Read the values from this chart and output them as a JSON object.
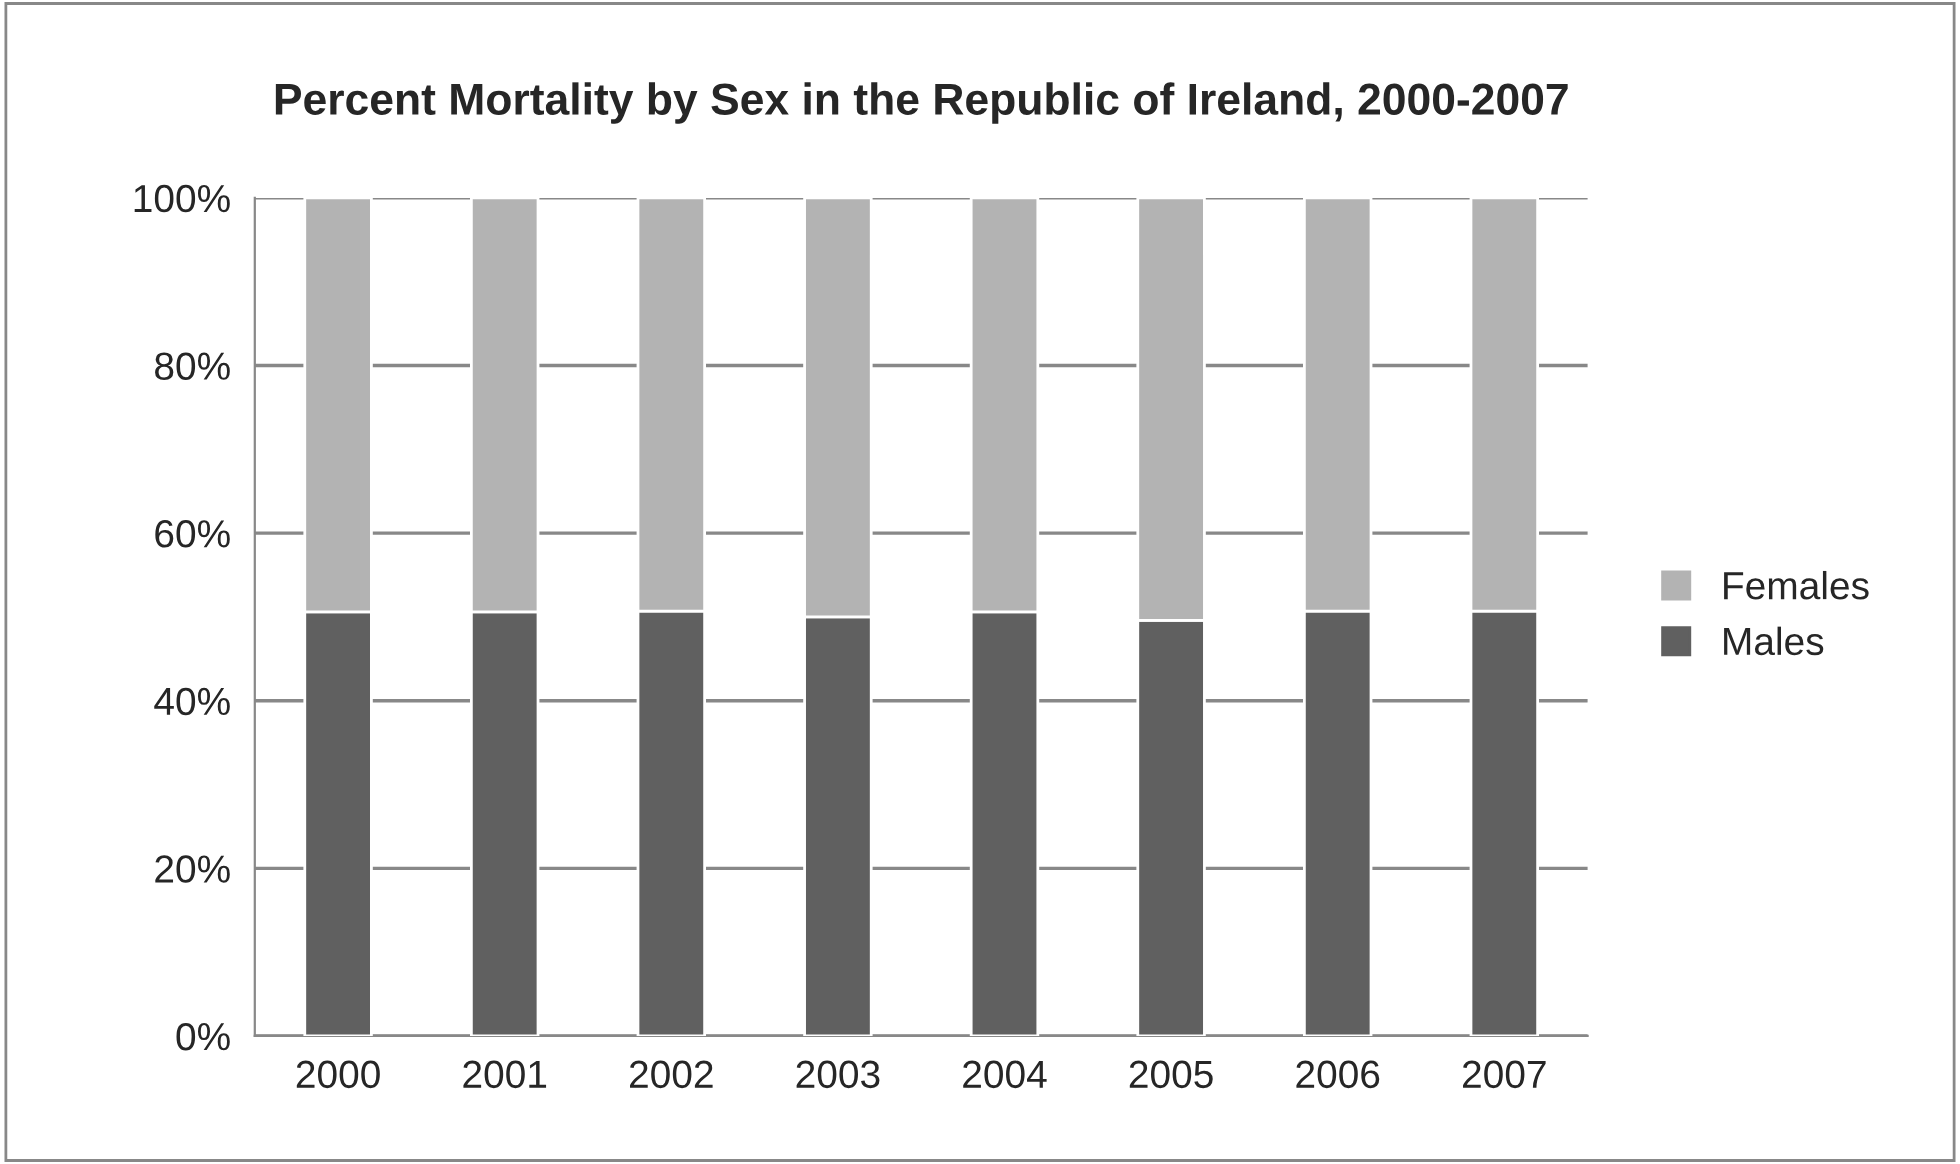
{
  "chart_data": {
    "type": "bar",
    "title": "Percent Mortality by Sex in the Republic of Ireland, 2000-2007",
    "stacked": true,
    "categories": [
      "2000",
      "2001",
      "2002",
      "2003",
      "2004",
      "2005",
      "2006",
      "2007"
    ],
    "series": [
      {
        "name": "Males",
        "color": "#606060",
        "values": [
          50.6,
          50.6,
          50.7,
          50.0,
          50.6,
          49.6,
          50.7,
          50.7
        ]
      },
      {
        "name": "Females",
        "color": "#b3b3b3",
        "values": [
          49.4,
          49.4,
          49.3,
          50.0,
          49.4,
          50.4,
          49.3,
          49.3
        ]
      }
    ],
    "ylim": [
      0,
      100
    ],
    "yticks": [
      {
        "value": 0,
        "label": "0%"
      },
      {
        "value": 20,
        "label": "20%"
      },
      {
        "value": 40,
        "label": "40%"
      },
      {
        "value": 60,
        "label": "60%"
      },
      {
        "value": 80,
        "label": "80%"
      },
      {
        "value": 100,
        "label": "100%"
      }
    ],
    "grid": "y",
    "legend": "right"
  }
}
